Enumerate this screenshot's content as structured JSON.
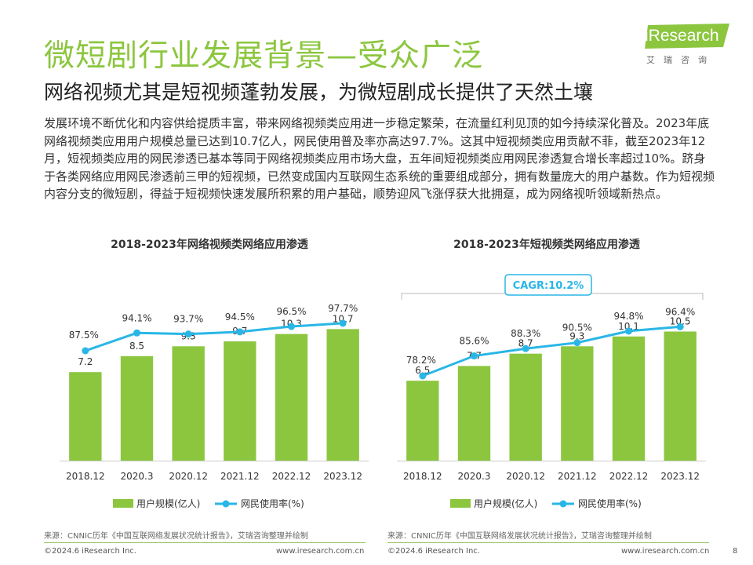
{
  "header": {
    "title": "微短剧行业发展背景—受众广泛",
    "subtitle": "网络视频尤其是短视频蓬勃发展，为微短剧成长提供了天然土壤",
    "body": "发展环境不断优化和内容供给提质丰富，带来网络视频类应用进一步稳定繁荣，在流量红利见顶的如今持续深化普及。2023年底网络视频类应用用户规模总量已达到10.7亿人，网民使用普及率亦高达97.7%。这其中短视频类应用贡献不菲，截至2023年12月，短视频类应用的网民渗透已基本等同于网络视频类应用市场大盘，五年间短视频类应用网民渗透复合增长率超过10%。跻身于各类网络应用网民渗透前三甲的短视频，已然变成国内互联网生态系统的重要组成部分，拥有数量庞大的用户基数。作为短视频内容分支的微短剧，得益于短视频快速发展所积累的用户基础，顺势迎风飞涨俘获大批拥趸，成为网络视听领域新热点。"
  },
  "logo": {
    "brand": "iResearch",
    "cn": "艾瑞咨询",
    "color": "#8cc63f"
  },
  "colors": {
    "bar": "#8cc63f",
    "line": "#29b6e6",
    "title": "#8cc63f",
    "axis": "#cccccc"
  },
  "chart_data": [
    {
      "type": "bar+line",
      "title": "2018-2023年网络视频类网络应用渗透",
      "categories": [
        "2018.12",
        "2020.3",
        "2020.12",
        "2021.12",
        "2022.12",
        "2023.12"
      ],
      "series": [
        {
          "name": "用户规模(亿人)",
          "type": "bar",
          "values": [
            7.2,
            8.5,
            9.3,
            9.7,
            10.3,
            10.7
          ],
          "labels": [
            "7.2",
            "8.5",
            "9.3",
            "9.7",
            "10.3",
            "10.7"
          ]
        },
        {
          "name": "网民使用率(%)",
          "type": "line",
          "values": [
            87.5,
            94.1,
            93.7,
            94.5,
            96.5,
            97.7
          ],
          "labels": [
            "87.5%",
            "94.1%",
            "93.7%",
            "94.5%",
            "96.5%",
            "97.7%"
          ]
        }
      ],
      "bar_ylim": [
        0,
        18
      ],
      "line_ylim": [
        50,
        110
      ],
      "annotation": null
    },
    {
      "type": "bar+line",
      "title": "2018-2023年短视频类网络应用渗透",
      "categories": [
        "2018.12",
        "2020.3",
        "2020.12",
        "2021.12",
        "2022.12",
        "2023.12"
      ],
      "series": [
        {
          "name": "用户规模(亿人)",
          "type": "bar",
          "values": [
            6.5,
            7.7,
            8.7,
            9.3,
            10.1,
            10.5
          ],
          "labels": [
            "6.5",
            "7.7",
            "8.7",
            "9.3",
            "10.1",
            "10.5"
          ]
        },
        {
          "name": "网民使用率(%)",
          "type": "line",
          "values": [
            78.2,
            85.6,
            88.3,
            90.5,
            94.8,
            96.4
          ],
          "labels": [
            "78.2%",
            "85.6%",
            "88.3%",
            "90.5%",
            "94.8%",
            "96.4%"
          ]
        }
      ],
      "bar_ylim": [
        0,
        18
      ],
      "line_ylim": [
        50,
        110
      ],
      "annotation": "CAGR:10.2%"
    }
  ],
  "sources": [
    "来源：CNNIC历年《中国互联网络发展状况统计报告》，艾瑞咨询整理并绘制",
    "来源：CNNIC历年《中国互联网络发展状况统计报告》，艾瑞咨询整理并绘制"
  ],
  "footer": {
    "copyright_left": "©2024.6 iResearch Inc.",
    "url_left": "www.iresearch.com.cn",
    "copyright_right": "©2024.6 iResearch Inc.",
    "url_right": "www.iresearch.com.cn",
    "page": "8"
  }
}
